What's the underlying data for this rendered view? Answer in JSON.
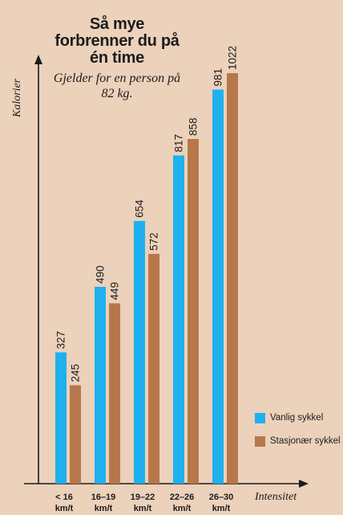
{
  "chart_data": {
    "type": "bar",
    "title": "Så mye forbrenner du på én time",
    "subtitle": "Gjelder for en person på 82 kg.",
    "ylabel": "Kalorier",
    "xlabel": "Intensitet",
    "categories": [
      [
        "< 16",
        "km/t"
      ],
      [
        "16–19",
        "km/t"
      ],
      [
        "19–22",
        "km/t"
      ],
      [
        "22–26",
        "km/t"
      ],
      [
        "26–30",
        "km/t"
      ]
    ],
    "series": [
      {
        "name": "Vanlig sykkel",
        "color": "#1eb1ee",
        "values": [
          327,
          490,
          654,
          817,
          981
        ]
      },
      {
        "name": "Stasjonær sykkel",
        "color": "#b8774b",
        "values": [
          245,
          449,
          572,
          858,
          1022
        ]
      }
    ],
    "ylim": [
      0,
      1100
    ],
    "grid": false,
    "legend_position": "bottom-right"
  }
}
